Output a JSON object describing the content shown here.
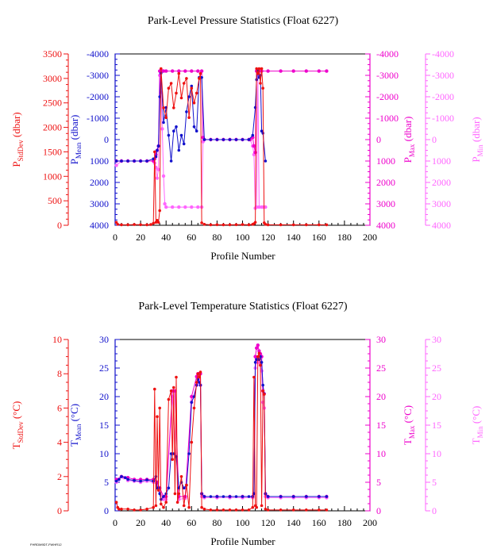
{
  "footer_text": "FHRDM9DT-FWHR12",
  "colors": {
    "stddev": "#ee1111",
    "mean": "#1111cc",
    "max": "#ee00cc",
    "min": "#ff66ff",
    "axis": "#000000"
  },
  "chart_data": [
    {
      "type": "line",
      "title": "Park-Level Pressure Statistics (Float 6227)",
      "xlabel": "Profile Number",
      "xlim": [
        0,
        200
      ],
      "xticks": [
        "0",
        "20",
        "40",
        "60",
        "80",
        "100",
        "120",
        "140",
        "160",
        "180",
        "200"
      ],
      "axes": [
        {
          "id": "stddev",
          "label": "P",
          "sub": "StdDev",
          "unit": "(dbar)",
          "lim": [
            0,
            3500
          ],
          "ticks": [
            "0",
            "500",
            "1000",
            "1500",
            "2000",
            "2500",
            "3000",
            "3500"
          ],
          "inverted": false
        },
        {
          "id": "mean",
          "label": "P",
          "sub": "Mean",
          "unit": "(dbar)",
          "lim": [
            -4000,
            4000
          ],
          "ticks": [
            "4000",
            "3000",
            "2000",
            "1000",
            "0",
            "-1000",
            "-2000",
            "-3000",
            "-4000"
          ],
          "inverted": true
        },
        {
          "id": "max",
          "label": "P",
          "sub": "Max",
          "unit": "(dbar)",
          "lim": [
            -4000,
            4000
          ],
          "ticks": [
            "4000",
            "3000",
            "2000",
            "1000",
            "0",
            "-1000",
            "-2000",
            "-3000",
            "-4000"
          ],
          "inverted": true
        },
        {
          "id": "min",
          "label": "P",
          "sub": "Min",
          "unit": "(dbar)",
          "lim": [
            -4000,
            4000
          ],
          "ticks": [
            "4000",
            "3000",
            "2000",
            "1000",
            "0",
            "-1000",
            "-2000",
            "-3000",
            "-4000"
          ],
          "inverted": true
        }
      ],
      "series": [
        {
          "axis": "stddev",
          "x": [
            1,
            2,
            5,
            10,
            15,
            20,
            25,
            28,
            30,
            31,
            32,
            33,
            34,
            35,
            36,
            38,
            40,
            42,
            44,
            46,
            48,
            50,
            52,
            54,
            56,
            58,
            60,
            62,
            64,
            66,
            67,
            68,
            70,
            75,
            80,
            85,
            90,
            95,
            100,
            105,
            108,
            109,
            110,
            111,
            112,
            113,
            114,
            115,
            116,
            117,
            118,
            120,
            130,
            140,
            150,
            160,
            166
          ],
          "y": [
            60,
            20,
            10,
            10,
            15,
            12,
            10,
            15,
            40,
            1500,
            60,
            100,
            60,
            300,
            3200,
            2400,
            2200,
            2800,
            2900,
            2400,
            2700,
            3100,
            2600,
            2900,
            3000,
            2200,
            2800,
            2500,
            2700,
            3000,
            3100,
            50,
            20,
            10,
            12,
            10,
            10,
            12,
            15,
            10,
            20,
            30,
            60,
            3200,
            3100,
            3200,
            2900,
            3200,
            2800,
            50,
            20,
            10,
            10,
            10,
            10,
            10,
            10
          ]
        },
        {
          "axis": "mean",
          "x": [
            1,
            5,
            10,
            15,
            20,
            25,
            30,
            32,
            33,
            34,
            35,
            36,
            38,
            40,
            42,
            44,
            46,
            48,
            50,
            52,
            54,
            56,
            58,
            60,
            62,
            64,
            66,
            68,
            70,
            75,
            80,
            85,
            90,
            95,
            100,
            105,
            108,
            110,
            111,
            112,
            113,
            114,
            115,
            116,
            118
          ],
          "y": [
            1000,
            1000,
            1000,
            1000,
            1000,
            1000,
            900,
            800,
            500,
            300,
            -2000,
            -3100,
            -800,
            -1500,
            -200,
            1000,
            -400,
            -600,
            500,
            -200,
            200,
            -1300,
            -2000,
            -2500,
            -600,
            -400,
            -2900,
            -2900,
            0,
            0,
            0,
            0,
            0,
            0,
            0,
            0,
            -200,
            -1500,
            -2800,
            -3200,
            -2900,
            -3000,
            -400,
            -300,
            1000
          ]
        },
        {
          "axis": "max",
          "x": [
            1,
            5,
            10,
            15,
            20,
            25,
            30,
            31,
            32,
            33,
            34,
            35,
            36,
            37,
            38,
            40,
            45,
            50,
            55,
            60,
            65,
            68,
            69,
            70,
            75,
            80,
            85,
            90,
            95,
            100,
            105,
            106,
            108,
            109,
            110,
            111,
            112,
            113,
            115,
            120,
            130,
            140,
            150,
            160,
            166
          ],
          "y": [
            1000,
            1000,
            1000,
            1000,
            1000,
            1000,
            1000,
            900,
            700,
            500,
            300,
            -3200,
            -3200,
            -3200,
            -3200,
            -3200,
            -3200,
            -3200,
            -3200,
            -3200,
            -3200,
            -3200,
            -100,
            0,
            0,
            0,
            0,
            0,
            0,
            0,
            0,
            0,
            -100,
            300,
            600,
            -3200,
            -3200,
            -3200,
            -3200,
            -3200,
            -3200,
            -3200,
            -3200,
            -3200,
            -3200
          ]
        },
        {
          "axis": "min",
          "x": [
            1,
            5,
            10,
            15,
            20,
            25,
            30,
            31,
            32,
            33,
            34,
            35,
            36,
            37,
            38,
            39,
            40,
            45,
            50,
            55,
            60,
            65,
            68,
            69,
            70,
            75,
            80,
            85,
            90,
            95,
            100,
            105,
            106,
            108,
            109,
            110,
            111,
            112,
            113,
            115,
            116,
            117,
            118
          ],
          "y": [
            1200,
            1000,
            1000,
            1000,
            1000,
            1000,
            1000,
            1100,
            1300,
            1800,
            1400,
            -3000,
            -2200,
            -500,
            1700,
            3000,
            3150,
            3150,
            3150,
            3150,
            3150,
            3150,
            3150,
            100,
            0,
            0,
            0,
            0,
            0,
            0,
            0,
            0,
            0,
            300,
            700,
            3200,
            3150,
            -3000,
            3150,
            3150,
            3150,
            3150,
            3150
          ]
        }
      ]
    },
    {
      "type": "line",
      "title": "Park-Level Temperature Statistics (Float 6227)",
      "xlabel": "Profile Number",
      "xlim": [
        0,
        200
      ],
      "xticks": [
        "0",
        "20",
        "40",
        "60",
        "80",
        "100",
        "120",
        "140",
        "160",
        "180",
        "200"
      ],
      "axes": [
        {
          "id": "stddev",
          "label": "T",
          "sub": "StdDev",
          "unit": "(°C)",
          "lim": [
            0,
            10
          ],
          "ticks": [
            "0",
            "2",
            "4",
            "6",
            "8",
            "10"
          ],
          "inverted": false
        },
        {
          "id": "mean",
          "label": "T",
          "sub": "Mean",
          "unit": "(°C)",
          "lim": [
            0,
            30
          ],
          "ticks": [
            "0",
            "5",
            "10",
            "15",
            "20",
            "25",
            "30"
          ],
          "inverted": false
        },
        {
          "id": "max",
          "label": "T",
          "sub": "Max",
          "unit": "(°C)",
          "lim": [
            0,
            30
          ],
          "ticks": [
            "0",
            "5",
            "10",
            "15",
            "20",
            "25",
            "30"
          ],
          "inverted": false
        },
        {
          "id": "min",
          "label": "T",
          "sub": "Min",
          "unit": "(°C)",
          "lim": [
            0,
            30
          ],
          "ticks": [
            "0",
            "5",
            "10",
            "15",
            "20",
            "25",
            "30"
          ],
          "inverted": false
        }
      ],
      "series": [
        {
          "axis": "stddev",
          "x": [
            1,
            2,
            3,
            5,
            10,
            15,
            20,
            25,
            30,
            31,
            32,
            33,
            34,
            35,
            36,
            38,
            40,
            42,
            44,
            45,
            46,
            47,
            48,
            49,
            50,
            52,
            54,
            56,
            58,
            60,
            62,
            64,
            65,
            66,
            67,
            68,
            70,
            75,
            80,
            85,
            90,
            95,
            100,
            105,
            108,
            109,
            110,
            111,
            112,
            113,
            114,
            115,
            116,
            117,
            118,
            120,
            130,
            140,
            150,
            160,
            166
          ],
          "y": [
            0.5,
            0.2,
            0.1,
            0.1,
            0.1,
            0.05,
            0.05,
            0.1,
            0.2,
            7.1,
            0.3,
            5.5,
            1.2,
            6,
            0.4,
            0.2,
            0.5,
            6.5,
            7,
            3,
            7.2,
            1,
            7.8,
            0.5,
            1,
            2,
            0.3,
            1.5,
            0.2,
            4,
            6,
            7.5,
            8,
            7.8,
            8.1,
            0.2,
            0.1,
            0.05,
            0.05,
            0.05,
            0.05,
            0.05,
            0.05,
            0.05,
            0.2,
            7.8,
            0.3,
            0.2,
            9,
            9.2,
            8.5,
            0.3,
            7,
            6.8,
            0.1,
            0.05,
            0.05,
            0.05,
            0.05,
            0.05,
            0.05
          ]
        },
        {
          "axis": "mean",
          "x": [
            1,
            3,
            5,
            8,
            10,
            15,
            20,
            25,
            30,
            32,
            33,
            34,
            35,
            36,
            38,
            40,
            42,
            44,
            45,
            46,
            48,
            50,
            52,
            54,
            56,
            58,
            60,
            62,
            64,
            65,
            66,
            67,
            68,
            70,
            75,
            80,
            85,
            90,
            95,
            100,
            105,
            108,
            109,
            110,
            111,
            112,
            113,
            114,
            115,
            116,
            117,
            118,
            120,
            130,
            140,
            150,
            160,
            166
          ],
          "y": [
            5.2,
            5.5,
            6,
            5.8,
            5.5,
            5.3,
            5.2,
            5.4,
            5.2,
            6,
            4,
            4,
            3,
            2,
            2.5,
            3,
            4,
            10,
            10,
            10,
            9.5,
            4,
            5,
            4,
            4.5,
            10,
            19,
            20,
            22,
            23,
            22.5,
            22,
            3,
            2.5,
            2.5,
            2.5,
            2.5,
            2.5,
            2.5,
            2.5,
            2.5,
            2.5,
            3,
            26,
            26.5,
            27,
            26.5,
            27,
            26,
            22,
            20.5,
            3,
            2.5,
            2.5,
            2.5,
            2.5,
            2.5,
            2.5
          ]
        },
        {
          "axis": "max",
          "x": [
            1,
            5,
            10,
            15,
            20,
            25,
            30,
            33,
            35,
            38,
            40,
            45,
            47,
            50,
            55,
            60,
            64,
            65,
            66,
            67,
            68,
            70,
            80,
            90,
            100,
            108,
            109,
            110,
            111,
            112,
            113,
            114,
            115,
            116,
            117,
            118,
            120,
            130,
            140,
            150,
            160,
            166
          ],
          "y": [
            5.5,
            6,
            5.8,
            5.5,
            5.5,
            5.5,
            5.5,
            5,
            4,
            2.5,
            2.5,
            21,
            21,
            2.5,
            2.5,
            20,
            23.5,
            24,
            24,
            24,
            3,
            2.5,
            2.5,
            2.5,
            2.5,
            2.5,
            3,
            27,
            28.5,
            29,
            28,
            27.5,
            27,
            21,
            20.5,
            3,
            2.5,
            2.5,
            2.5,
            2.5,
            2.5,
            2.5
          ]
        },
        {
          "axis": "min",
          "x": [
            1,
            3,
            5,
            7,
            10,
            15,
            20,
            25,
            30,
            33,
            35,
            38,
            40,
            45,
            50,
            55,
            60,
            64,
            65,
            66,
            67,
            68,
            70,
            80,
            90,
            100,
            108,
            109,
            110,
            111,
            112,
            113,
            114,
            115,
            116,
            117,
            118,
            120,
            130,
            140,
            150,
            160,
            166
          ],
          "y": [
            5,
            5.5,
            6,
            5.8,
            5.3,
            5.2,
            5,
            5.2,
            5,
            4.5,
            3.5,
            2,
            2,
            20,
            2,
            2.2,
            19,
            22,
            22.5,
            23,
            22,
            2.5,
            2.3,
            2.3,
            2.3,
            2.3,
            2.3,
            3,
            25,
            26,
            26.5,
            26,
            25.5,
            24.5,
            19,
            18,
            2.5,
            2.3,
            2.3,
            2.3,
            2.3,
            2.3,
            2.3
          ]
        }
      ]
    }
  ]
}
